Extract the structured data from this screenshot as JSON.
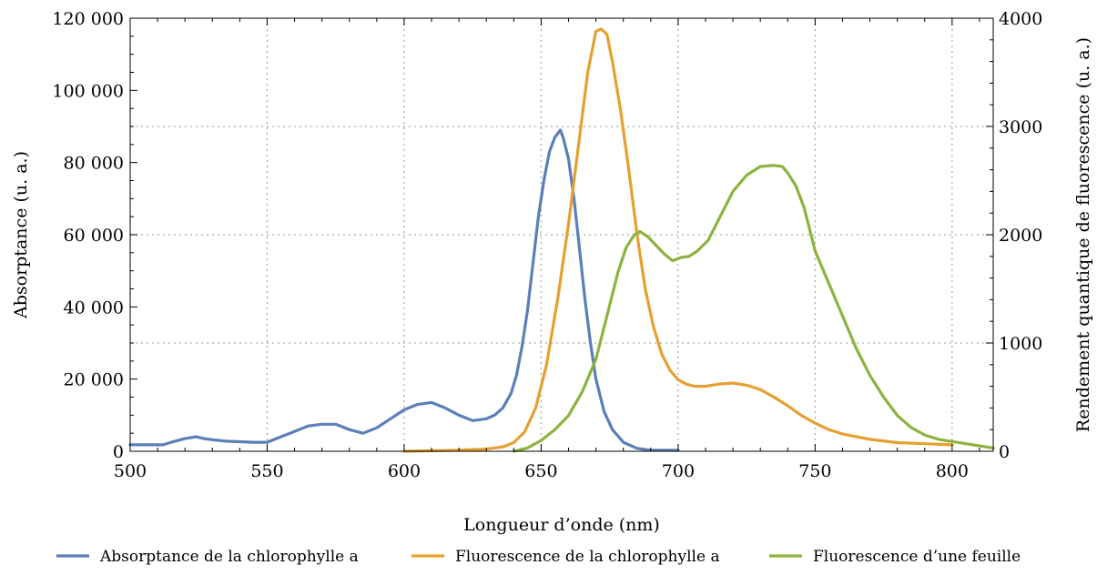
{
  "chart_data": {
    "type": "line",
    "title": "",
    "xlabel": "Longueur d’onde (nm)",
    "ylabel_left": "Absorptance (u. a.)",
    "ylabel_right": "Rendement quantique de fluorescence (u. a.)",
    "xlim": [
      500,
      815
    ],
    "ylim_left": [
      0,
      120000
    ],
    "ylim_right": [
      0,
      4000
    ],
    "x_ticks": [
      "500",
      "550",
      "600",
      "650",
      "700",
      "750",
      "800"
    ],
    "y_left_ticks": [
      "0",
      "20 000",
      "40 000",
      "60 000",
      "80 000",
      "100 000",
      "120 000"
    ],
    "y_right_ticks": [
      "0",
      "1000",
      "2000",
      "3000",
      "4000"
    ],
    "grid": true,
    "legend_position": "bottom",
    "series": [
      {
        "name": "Absorptance de la chlorophylle a",
        "axis": "left",
        "color": "#5b7fb8",
        "x": [
          500,
          512,
          515,
          520,
          524,
          527,
          530,
          535,
          545,
          550,
          555,
          560,
          565,
          570,
          575,
          580,
          585,
          590,
          595,
          600,
          605,
          610,
          615,
          620,
          625,
          630,
          633,
          636,
          639,
          641,
          643,
          645,
          647,
          649,
          651,
          653,
          655,
          657,
          658,
          660,
          662,
          664,
          666,
          668,
          670,
          673,
          676,
          680,
          685,
          690,
          695,
          700
        ],
        "y": [
          1800,
          1800,
          2500,
          3500,
          4000,
          3500,
          3200,
          2800,
          2500,
          2500,
          4000,
          5500,
          7000,
          7500,
          7500,
          6000,
          5000,
          6500,
          9000,
          11500,
          13000,
          13500,
          12000,
          10000,
          8500,
          9000,
          10000,
          12000,
          16000,
          21000,
          29000,
          39000,
          52000,
          65000,
          75000,
          83000,
          87000,
          89000,
          87000,
          81000,
          70000,
          56000,
          42000,
          30000,
          20000,
          11000,
          6000,
          2500,
          800,
          300,
          300,
          300
        ]
      },
      {
        "name": "Fluorescence de la chlorophylle a",
        "axis": "right",
        "color": "#e6a030",
        "x": [
          600,
          620,
          630,
          636,
          640,
          644,
          648,
          652,
          656,
          660,
          664,
          667,
          670,
          672,
          674,
          676,
          679,
          682,
          685,
          688,
          691,
          694,
          697,
          700,
          703,
          706,
          710,
          715,
          720,
          725,
          730,
          735,
          740,
          745,
          750,
          755,
          760,
          770,
          780,
          790,
          800
        ],
        "y": [
          0,
          10,
          20,
          40,
          80,
          180,
          400,
          800,
          1400,
          2100,
          2900,
          3500,
          3880,
          3900,
          3850,
          3600,
          3150,
          2600,
          2000,
          1500,
          1150,
          900,
          750,
          660,
          620,
          600,
          600,
          620,
          630,
          610,
          570,
          500,
          420,
          330,
          260,
          200,
          160,
          110,
          80,
          70,
          60
        ]
      },
      {
        "name": "Fluorescence d’une feuille",
        "axis": "right",
        "color": "#8db33e",
        "x": [
          640,
          645,
          650,
          655,
          660,
          665,
          670,
          675,
          678,
          681,
          684,
          686,
          689,
          692,
          695,
          698,
          701,
          704,
          707,
          711,
          715,
          720,
          725,
          730,
          735,
          738,
          740,
          743,
          746,
          750,
          755,
          760,
          765,
          770,
          775,
          780,
          785,
          790,
          795,
          800,
          805,
          810,
          815
        ],
        "y": [
          0,
          30,
          100,
          200,
          330,
          550,
          850,
          1350,
          1650,
          1880,
          2000,
          2030,
          1980,
          1900,
          1820,
          1760,
          1790,
          1800,
          1850,
          1950,
          2150,
          2400,
          2550,
          2630,
          2640,
          2630,
          2570,
          2450,
          2250,
          1850,
          1550,
          1250,
          950,
          700,
          500,
          330,
          220,
          150,
          110,
          90,
          70,
          50,
          30
        ]
      }
    ]
  }
}
